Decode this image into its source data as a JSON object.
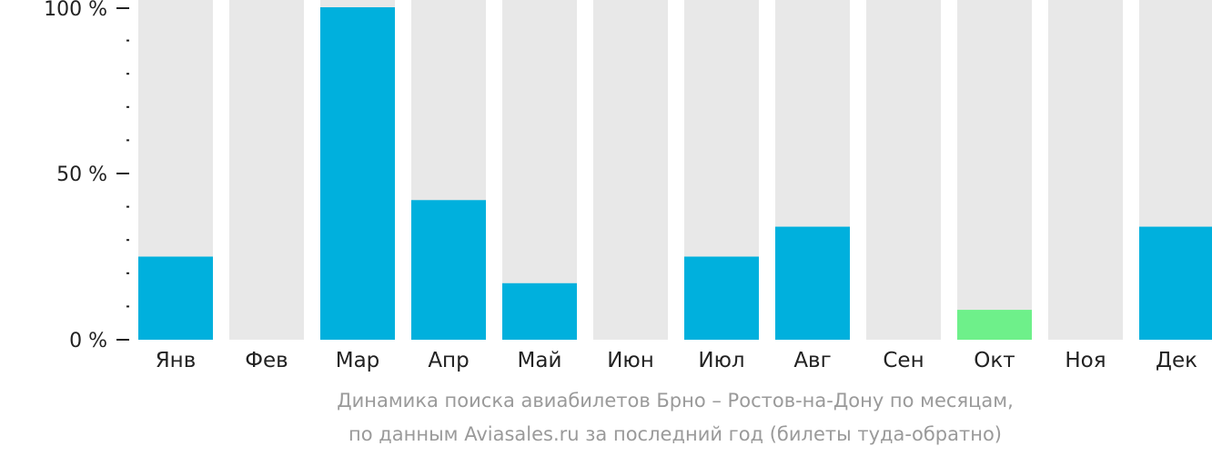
{
  "chart_data": {
    "type": "bar",
    "categories": [
      "Янв",
      "Фев",
      "Мар",
      "Апр",
      "Май",
      "Июн",
      "Июл",
      "Авг",
      "Сен",
      "Окт",
      "Ноя",
      "Дек"
    ],
    "values": [
      25,
      0,
      100,
      42,
      17,
      0,
      25,
      34,
      0,
      9,
      0,
      34
    ],
    "ylim": [
      0,
      100
    ],
    "yticks": [
      {
        "value": 0,
        "label": "0 %"
      },
      {
        "value": 50,
        "label": "50 %"
      },
      {
        "value": 100,
        "label": "100 %"
      }
    ],
    "minor_tick_step": 10,
    "caption": [
      "Динамика поиска авиабилетов Брно – Ростов-на-Дону по месяцам,",
      "по данным Aviasales.ru за последний год (билеты туда-обратно)"
    ],
    "colors": {
      "bar": "#00b0dd",
      "bar_highlight": "#6ef08a",
      "background_column": "#e8e8e8",
      "axis": "#222222",
      "tick_label": "#222222",
      "caption": "#9a9a9a"
    },
    "highlight_index": 9
  }
}
